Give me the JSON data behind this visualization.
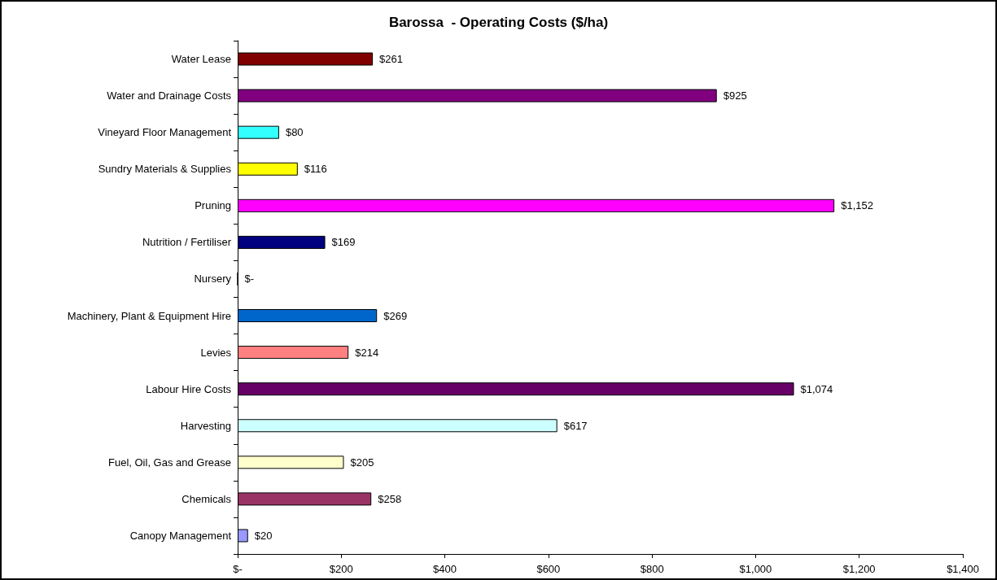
{
  "chart_data": {
    "type": "bar",
    "orientation": "horizontal",
    "title": "Barossa  - Operating Costs ($/ha)",
    "categories": [
      "Water Lease",
      "Water and Drainage Costs",
      "Vineyard Floor Management",
      "Sundry Materials & Supplies",
      "Pruning",
      "Nutrition / Fertiliser",
      "Nursery",
      "Machinery, Plant & Equipment Hire",
      "Levies",
      "Labour Hire Costs",
      "Harvesting",
      "Fuel, Oil, Gas and Grease",
      "Chemicals",
      "Canopy Management"
    ],
    "values": [
      261,
      925,
      80,
      116,
      1152,
      169,
      0,
      269,
      214,
      1074,
      617,
      205,
      258,
      20
    ],
    "value_labels": [
      "$261",
      "$925",
      "$80",
      "$116",
      "$1,152",
      "$169",
      "$-",
      "$269",
      "$214",
      "$1,074",
      "$617",
      "$205",
      "$258",
      "$20"
    ],
    "colors": [
      "#800000",
      "#800080",
      "#33ffff",
      "#ffff00",
      "#ff00ff",
      "#000080",
      "#008080",
      "#0066cc",
      "#ff8080",
      "#660066",
      "#ccffff",
      "#ffffcc",
      "#993366",
      "#9999ff"
    ],
    "xlim": [
      0,
      1400
    ],
    "xticks": [
      {
        "value": 0,
        "label": "$-"
      },
      {
        "value": 200,
        "label": "$200"
      },
      {
        "value": 400,
        "label": "$400"
      },
      {
        "value": 600,
        "label": "$600"
      },
      {
        "value": 800,
        "label": "$800"
      },
      {
        "value": 1000,
        "label": "$1,000"
      },
      {
        "value": 1200,
        "label": "$1,200"
      },
      {
        "value": 1400,
        "label": "$1,400"
      }
    ],
    "grid": false
  }
}
